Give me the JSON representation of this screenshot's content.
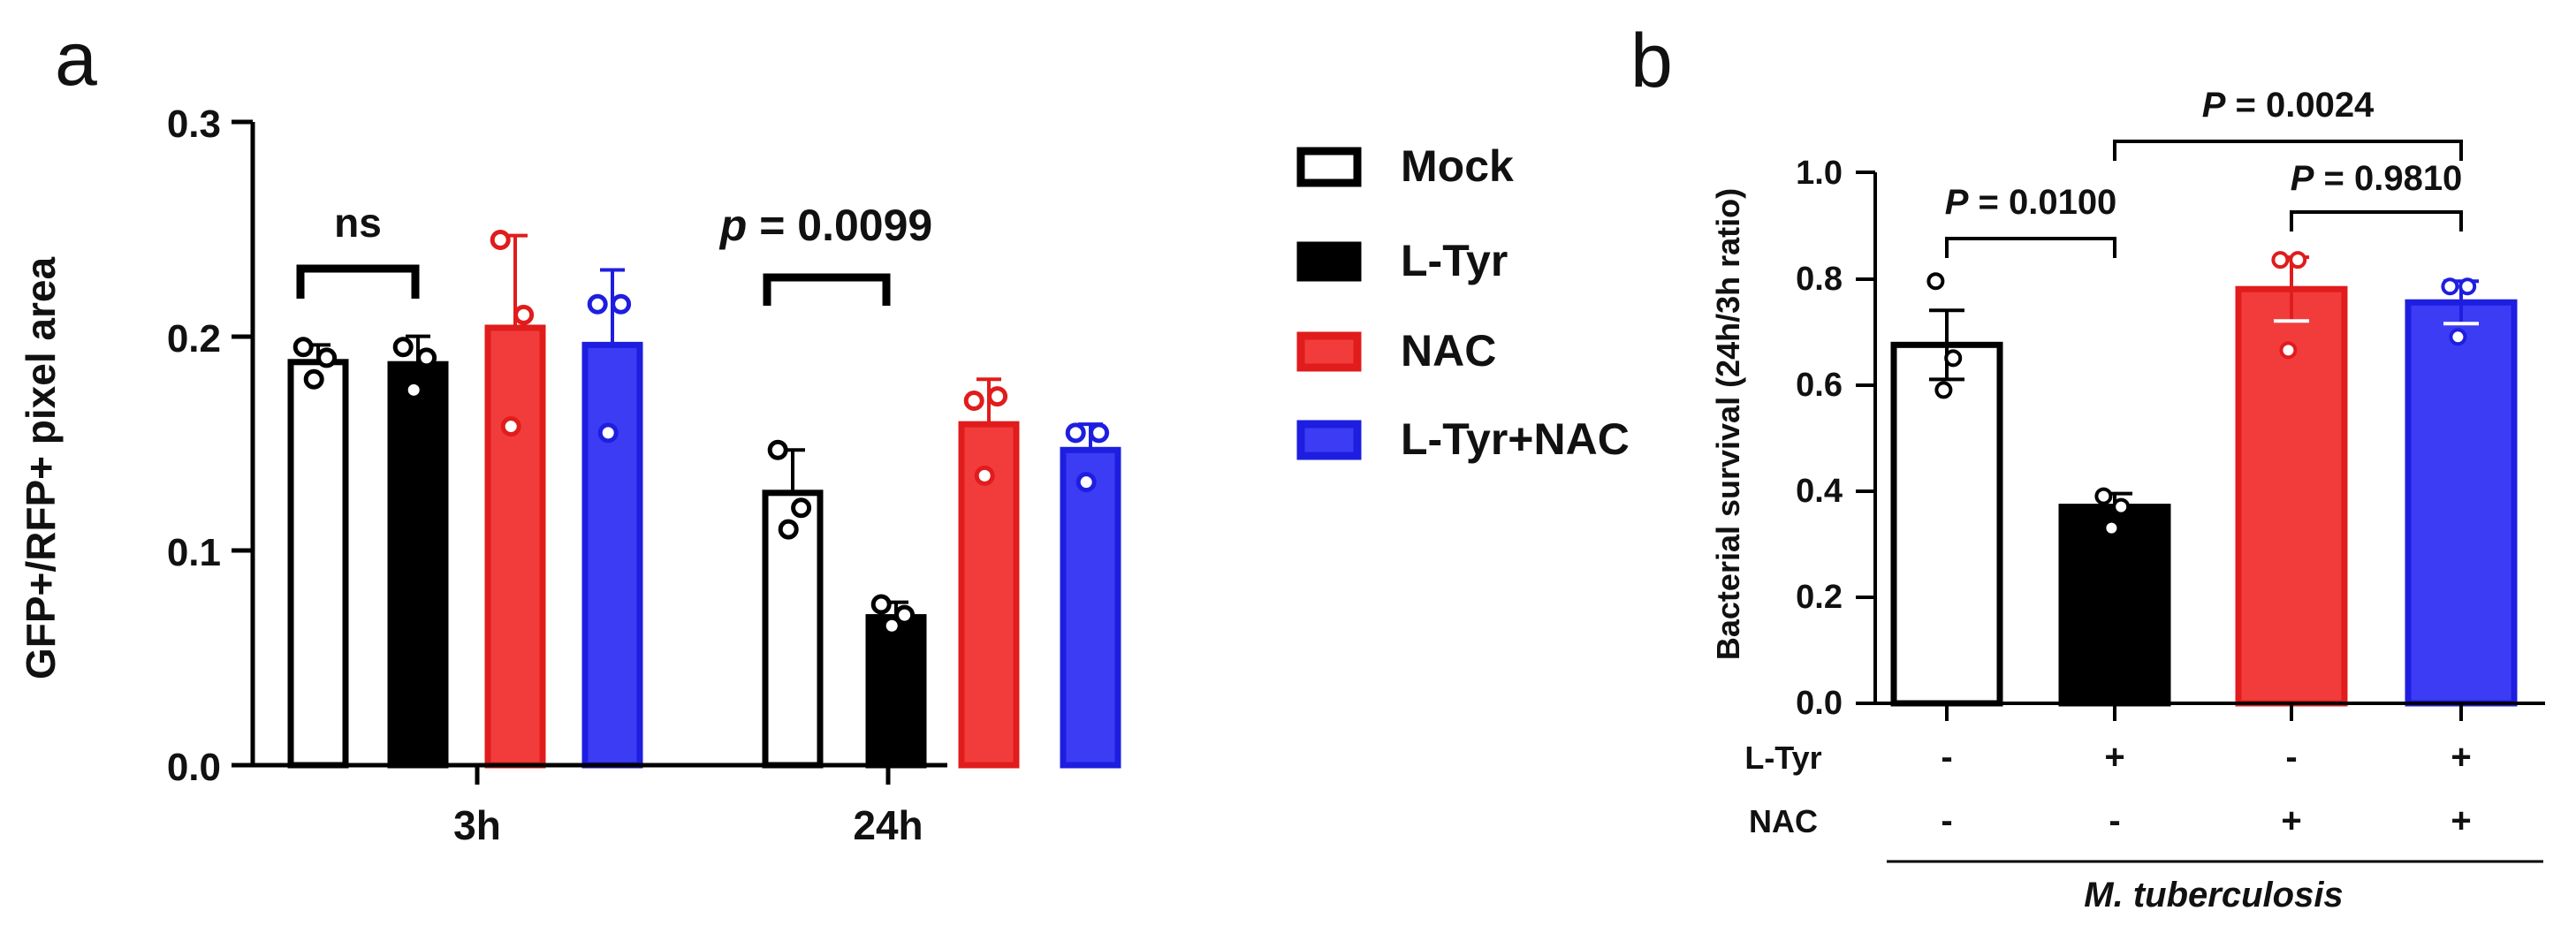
{
  "colors": {
    "mock": "#ffffff",
    "ltyr": "#000000",
    "nac": "#f23c3c",
    "ltyrnac": "#3c3cf5",
    "axis": "#000000"
  },
  "panel_a": {
    "label": "a",
    "ylabel": "GFP+/RFP+ pixel area",
    "yticks": [
      "0.0",
      "0.1",
      "0.2",
      "0.3"
    ],
    "groups": [
      "3h",
      "24h"
    ],
    "annotations": [
      "ns",
      "p",
      " = 0.0099"
    ],
    "legend": [
      "Mock",
      "L-Tyr",
      "NAC",
      "L-Tyr+NAC"
    ]
  },
  "panel_b": {
    "label": "b",
    "ylabel": "Bacterial survival (24h/3h ratio)",
    "yticks": [
      "0.0",
      "0.2",
      "0.4",
      "0.6",
      "0.8",
      "1.0"
    ],
    "row_labels": [
      "L-Tyr",
      "NAC"
    ],
    "ltyr_signs": [
      "-",
      "+",
      "-",
      "+"
    ],
    "nac_signs": [
      "-",
      "-",
      "+",
      "+"
    ],
    "p_labels": [
      "P",
      " = 0.0100",
      "P",
      " = 0.0024",
      "P",
      " = 0.9810"
    ],
    "organism": "M. tuberculosis"
  },
  "chart_data": [
    {
      "type": "bar",
      "panel": "a",
      "title": "",
      "xlabel": "",
      "ylabel": "GFP+/RFP+ pixel area",
      "ylim": [
        0,
        0.3
      ],
      "categories": [
        "3h",
        "24h"
      ],
      "series": [
        {
          "name": "Mock",
          "values": [
            0.188,
            0.127
          ],
          "errors": [
            0.008,
            0.02
          ],
          "points": [
            [
              0.195,
              0.19,
              0.18
            ],
            [
              0.147,
              0.12,
              0.11
            ]
          ]
        },
        {
          "name": "L-Tyr",
          "values": [
            0.187,
            0.069
          ],
          "errors": [
            0.013,
            0.007
          ],
          "points": [
            [
              0.195,
              0.19,
              0.175
            ],
            [
              0.075,
              0.07,
              0.065
            ]
          ]
        },
        {
          "name": "NAC",
          "values": [
            0.204,
            0.159
          ],
          "errors": [
            0.043,
            0.021
          ],
          "points": [
            [
              0.245,
              0.21,
              0.158
            ],
            [
              0.17,
              0.172,
              0.135
            ]
          ]
        },
        {
          "name": "L-Tyr+NAC",
          "values": [
            0.196,
            0.147
          ],
          "errors": [
            0.035,
            0.012
          ],
          "points": [
            [
              0.215,
              0.215,
              0.155
            ],
            [
              0.155,
              0.155,
              0.132
            ]
          ]
        }
      ],
      "legend": "right",
      "annotations": [
        {
          "text": "ns",
          "between": [
            "Mock 3h",
            "L-Tyr 3h"
          ]
        },
        {
          "text": "p = 0.0099",
          "between": [
            "Mock 24h",
            "L-Tyr 24h"
          ]
        }
      ]
    },
    {
      "type": "bar",
      "panel": "b",
      "title": "",
      "xlabel": "M. tuberculosis",
      "ylabel": "Bacterial survival (24h/3h ratio)",
      "ylim": [
        0,
        1.0
      ],
      "categories": [
        "Mock",
        "L-Tyr",
        "NAC",
        "L-Tyr+NAC"
      ],
      "values": [
        0.675,
        0.37,
        0.78,
        0.755
      ],
      "errors": [
        0.065,
        0.025,
        0.06,
        0.04
      ],
      "points": [
        [
          0.795,
          0.65,
          0.59
        ],
        [
          0.39,
          0.37,
          0.33
        ],
        [
          0.835,
          0.835,
          0.665
        ],
        [
          0.785,
          0.785,
          0.69
        ]
      ],
      "comparisons": [
        {
          "text": "P = 0.0100",
          "groups": [
            "Mock",
            "L-Tyr"
          ]
        },
        {
          "text": "P = 0.0024",
          "groups": [
            "L-Tyr",
            "L-Tyr+NAC"
          ]
        },
        {
          "text": "P = 0.9810",
          "groups": [
            "NAC",
            "L-Tyr+NAC"
          ]
        }
      ]
    }
  ]
}
